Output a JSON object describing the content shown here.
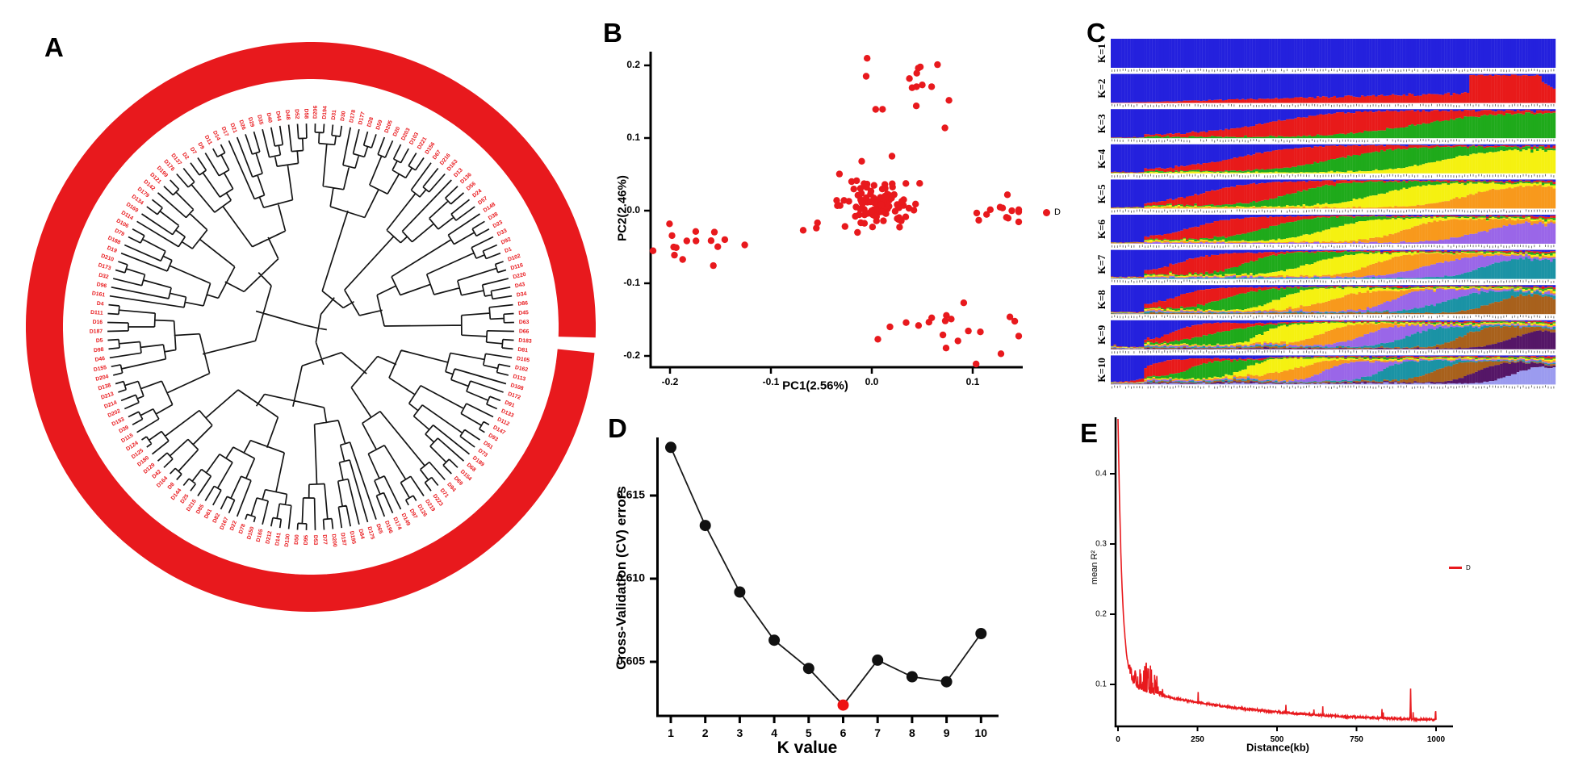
{
  "panels": {
    "a": {
      "label": "A"
    },
    "b": {
      "label": "B",
      "xlabel": "PC1(2.56%)",
      "ylabel": "PC2(2.46%)",
      "legend_label": "D"
    },
    "c": {
      "label": "C",
      "row_labels": [
        "K=1",
        "K=2",
        "K=3",
        "K=4",
        "K=5",
        "K=6",
        "K=7",
        "K=8",
        "K=9",
        "K=10"
      ]
    },
    "d": {
      "label": "D",
      "xlabel": "K value",
      "ylabel": "Cross-Validation (CV) errors"
    },
    "e": {
      "label": "E",
      "xlabel": "Distance(kb)",
      "ylabel": "mean R²",
      "legend_label": "D"
    }
  },
  "colors": {
    "red": "#e8191d",
    "black": "#141414",
    "highlight_red": "#ee1111",
    "admixture_palette": [
      "#2421dd",
      "#e81a1a",
      "#1faa1b",
      "#f5f111",
      "#f8991c",
      "#9a66e8",
      "#1b93a5",
      "#a8611c",
      "#551667",
      "#9b9bef"
    ]
  },
  "chart_data": [
    {
      "panel": "A",
      "type": "dendrogram-circular",
      "description": "Circular cladogram of accessions, black branches, red leaf labels, thick red outer ring with a small gap just below the 3 o'clock position",
      "leaf_labels": [
        "D206",
        "D194",
        "D31",
        "D30",
        "D178",
        "D177",
        "D28",
        "D59",
        "D205",
        "D20",
        "D203",
        "D103",
        "D221",
        "D156",
        "D67",
        "D216",
        "D163",
        "D13",
        "D136",
        "D56",
        "D24",
        "D57",
        "D148",
        "D38",
        "D23",
        "D33",
        "D92",
        "D1",
        "D102",
        "D116",
        "D220",
        "D43",
        "D34",
        "D86",
        "D45",
        "D63",
        "D66",
        "D183",
        "D81",
        "D105",
        "D162",
        "D113",
        "D108",
        "D172",
        "D91",
        "D133",
        "D112",
        "D147",
        "D93",
        "D51",
        "D73",
        "D189",
        "D68",
        "D154",
        "D69",
        "D94",
        "D71",
        "D223",
        "D219",
        "D126",
        "D97",
        "D149",
        "D174",
        "D196",
        "D65",
        "D175",
        "D84",
        "D195",
        "D197",
        "D200",
        "D77",
        "D53",
        "D95",
        "D50",
        "D130",
        "D141",
        "D212",
        "D165",
        "D150",
        "D78",
        "D22",
        "D167",
        "D82",
        "D61",
        "D85",
        "D215",
        "D25",
        "D144",
        "D8",
        "D164",
        "D42",
        "D129",
        "D180",
        "D125",
        "D124",
        "D115",
        "D39",
        "D153",
        "D202",
        "D214",
        "D213",
        "D138",
        "D204",
        "D155",
        "D46",
        "D98",
        "D5",
        "D187",
        "D16",
        "D111",
        "D4",
        "D161",
        "D96",
        "D32",
        "D173",
        "D210",
        "D19",
        "D188",
        "D79",
        "D106",
        "D114",
        "D169",
        "D134",
        "D179",
        "D142",
        "D121",
        "D199",
        "D176",
        "D137",
        "D2",
        "D7",
        "D9",
        "D11",
        "D14",
        "D17",
        "D21",
        "D26",
        "D29",
        "D35",
        "D40",
        "D44",
        "D48",
        "D52",
        "D58"
      ]
    },
    {
      "panel": "B",
      "type": "scatter",
      "xlabel": "PC1(2.56%)",
      "ylabel": "PC2(2.46%)",
      "xlim": [
        -0.22,
        0.145
      ],
      "ylim": [
        -0.225,
        0.215
      ],
      "x_ticks": [
        -0.2,
        -0.1,
        0.0,
        0.1
      ],
      "x_tick_labels": [
        "-0.2",
        "-0.1",
        "0.0",
        "0.1"
      ],
      "y_ticks": [
        0.2,
        0.1,
        0.0,
        -0.1,
        -0.2
      ],
      "y_tick_labels": [
        "0.2",
        "0.1",
        "0.0",
        "-0.1",
        "-0.2"
      ],
      "point_color": "#e8191d",
      "legend": [
        {
          "label": "D",
          "color": "#e8191d"
        }
      ],
      "clusters": [
        {
          "name": "southwest",
          "n": 16,
          "cx": -0.178,
          "cy": -0.049,
          "sx": 0.026,
          "sy": 0.015
        },
        {
          "name": "center",
          "n": 70,
          "cx": 0.002,
          "cy": 0.014,
          "sx": 0.021,
          "sy": 0.02
        },
        {
          "name": "center-core",
          "n": 45,
          "cx": 0.012,
          "cy": 0.008,
          "sx": 0.009,
          "sy": 0.009
        },
        {
          "name": "north",
          "n": 16,
          "cx": 0.038,
          "cy": 0.158,
          "sx": 0.022,
          "sy": 0.024
        },
        {
          "name": "east",
          "n": 13,
          "cx": 0.128,
          "cy": -0.002,
          "sx": 0.012,
          "sy": 0.015
        },
        {
          "name": "southeast",
          "n": 17,
          "cx": 0.09,
          "cy": -0.155,
          "sx": 0.028,
          "sy": 0.021
        }
      ],
      "outliers": [
        [
          -0.068,
          -0.027
        ],
        [
          -0.055,
          -0.024
        ],
        [
          0.006,
          -0.177
        ],
        [
          0.018,
          -0.16
        ],
        [
          0.128,
          -0.197
        ],
        [
          0.02,
          0.075
        ],
        [
          -0.01,
          0.068
        ]
      ]
    },
    {
      "panel": "C",
      "type": "admixture-stacked-bar",
      "description": "ADMIXTURE ancestry bar plots for K=1 to K=10; each row is one K, individuals on x, ancestry fraction on y; tiny illegible sample-ID strip below each row",
      "k_values": [
        1,
        2,
        3,
        4,
        5,
        6,
        7,
        8,
        9,
        10
      ],
      "n_individuals": 160,
      "palette": [
        "#2421dd",
        "#e81a1a",
        "#1faa1b",
        "#f5f111",
        "#f8991c",
        "#9a66e8",
        "#1b93a5",
        "#a8611c",
        "#551667",
        "#9b9bef"
      ]
    },
    {
      "panel": "D",
      "type": "line",
      "xlabel": "K value",
      "ylabel": "Cross-Validation (CV) errors",
      "x": [
        1,
        2,
        3,
        4,
        5,
        6,
        7,
        8,
        9,
        10
      ],
      "y": [
        0.6179,
        0.6132,
        0.6092,
        0.6063,
        0.6046,
        0.6024,
        0.6051,
        0.6041,
        0.6038,
        0.6067
      ],
      "x_tick_labels": [
        "1",
        "2",
        "3",
        "4",
        "5",
        "6",
        "7",
        "8",
        "9",
        "10"
      ],
      "y_ticks": [
        0.605,
        0.61,
        0.615
      ],
      "y_tick_labels": [
        "0.605",
        "0.610",
        "0.615"
      ],
      "highlight_x": 6,
      "highlight_color": "#ee1111",
      "point_color": "#111111"
    },
    {
      "panel": "E",
      "type": "line",
      "xlabel": "Distance(kb)",
      "ylabel": "mean R²",
      "x_ticks": [
        0,
        250,
        500,
        750,
        1000
      ],
      "x_tick_labels": [
        "0",
        "250",
        "500",
        "750",
        "1000"
      ],
      "y_ticks": [
        0.1,
        0.2,
        0.3,
        0.4
      ],
      "y_tick_labels": [
        "0.1",
        "0.2",
        "0.3",
        "0.4"
      ],
      "color": "#e8191d",
      "legend": [
        {
          "label": "D",
          "color": "#e8191d"
        }
      ],
      "curve": {
        "formula": "R2(d) = 0.045 + 0.055*exp(-d/400) + 0.38*exp(-d/13)",
        "sampled_points": [
          [
            0,
            0.48
          ],
          [
            10,
            0.27
          ],
          [
            25,
            0.15
          ],
          [
            60,
            0.096
          ],
          [
            100,
            0.087
          ],
          [
            250,
            0.075
          ],
          [
            500,
            0.063
          ],
          [
            750,
            0.055
          ],
          [
            1000,
            0.05
          ]
        ],
        "noise_spike_region_kb": [
          35,
          145
        ],
        "big_spike_kb": 920,
        "big_spike_value": 0.095
      }
    }
  ]
}
